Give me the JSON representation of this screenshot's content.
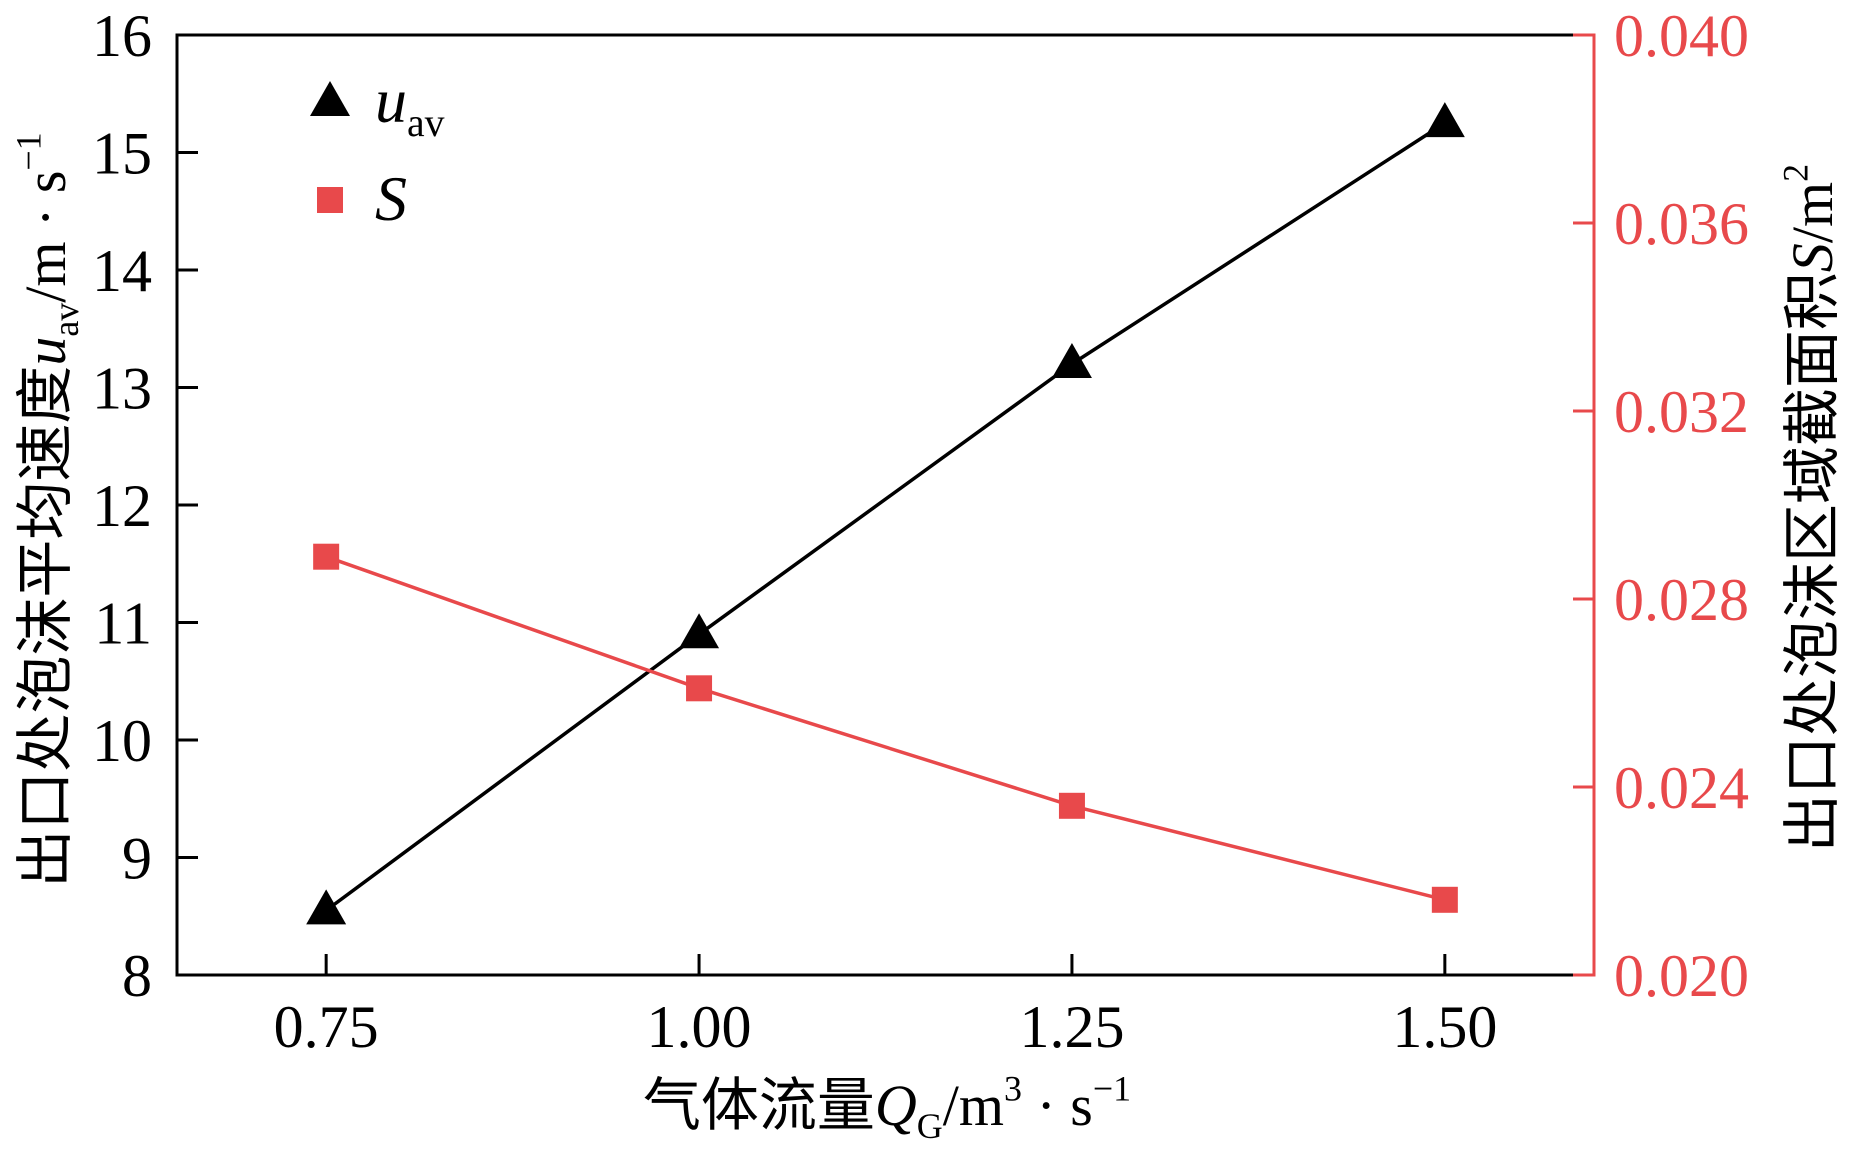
{
  "chart_data": {
    "type": "line",
    "x": [
      0.75,
      1.0,
      1.25,
      1.5
    ],
    "xlim": [
      0.65,
      1.6
    ],
    "x_ticks": [
      0.75,
      1.0,
      1.25,
      1.5
    ],
    "x_tick_labels": [
      "0.75",
      "1.00",
      "1.25",
      "1.50"
    ],
    "xlabel": [
      {
        "text": "气体流量"
      },
      {
        "text": "Q",
        "style": "italic"
      },
      {
        "text": "G",
        "style": "sub"
      },
      {
        "text": "/m"
      },
      {
        "text": "3",
        "style": "sup"
      },
      {
        "text": " · s"
      },
      {
        "text": "−1",
        "style": "sup"
      }
    ],
    "y_left": {
      "label": [
        {
          "text": "出口处泡沫平均速度"
        },
        {
          "text": "u",
          "style": "italic"
        },
        {
          "text": "av",
          "style": "sub"
        },
        {
          "text": "/m · s"
        },
        {
          "text": "−1",
          "style": "sup"
        }
      ],
      "lim": [
        8,
        16
      ],
      "ticks": [
        8,
        9,
        10,
        11,
        12,
        13,
        14,
        15,
        16
      ],
      "tick_labels": [
        "8",
        "9",
        "10",
        "11",
        "12",
        "13",
        "14",
        "15",
        "16"
      ],
      "color": "#000000"
    },
    "y_right": {
      "label": [
        {
          "text": "出口处泡沫区域截面积"
        },
        {
          "text": "S",
          "style": "italic"
        },
        {
          "text": "/m"
        },
        {
          "text": "2",
          "style": "sup"
        }
      ],
      "lim": [
        0.02,
        0.04
      ],
      "ticks": [
        0.02,
        0.024,
        0.028,
        0.032,
        0.036,
        0.04
      ],
      "tick_labels": [
        "0.020",
        "0.024",
        "0.028",
        "0.032",
        "0.036",
        "0.040"
      ],
      "color": "#e8494b"
    },
    "series": [
      {
        "name": [
          {
            "text": "u",
            "style": "italic"
          },
          {
            "text": "av",
            "style": "sub"
          }
        ],
        "axis": "left",
        "values": [
          8.55,
          10.9,
          13.2,
          15.25
        ],
        "color": "#000000",
        "marker": "triangle"
      },
      {
        "name": [
          {
            "text": "S",
            "style": "italic"
          }
        ],
        "axis": "right",
        "values": [
          0.0289,
          0.0261,
          0.0236,
          0.0216
        ],
        "color": "#e8494b",
        "marker": "square"
      }
    ],
    "legend": "top-left",
    "grid": false
  }
}
